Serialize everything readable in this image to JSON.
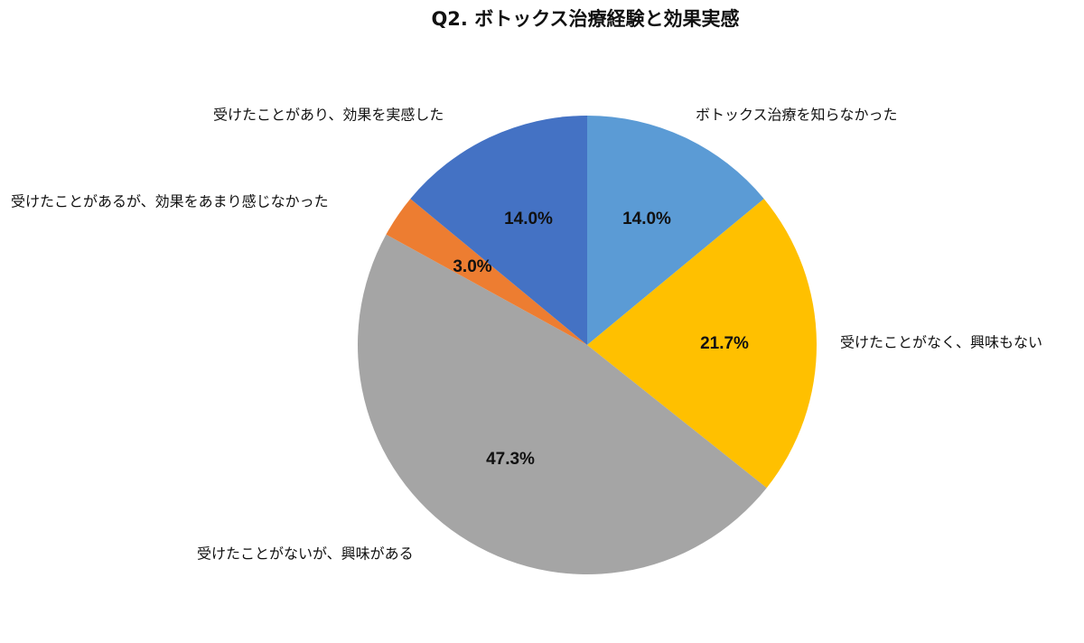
{
  "chart_data": {
    "type": "pie",
    "title": "Q2. ボトックス治療経験と効果実感",
    "categories": [
      "ボトックス治療を知らなかった",
      "受けたことがなく、興味もない",
      "受けたことがないが、興味がある",
      "受けたことがあるが、効果をあまり感じなかった",
      "受けたことがあり、効果を実感した"
    ],
    "values": [
      14.0,
      21.7,
      47.3,
      3.0,
      14.0
    ],
    "value_labels": [
      "14.0%",
      "21.7%",
      "47.3%",
      "3.0%",
      "14.0%"
    ],
    "colors": [
      "#5b9bd5",
      "#ffc000",
      "#a5a5a5",
      "#ed7d31",
      "#4472c4"
    ]
  }
}
